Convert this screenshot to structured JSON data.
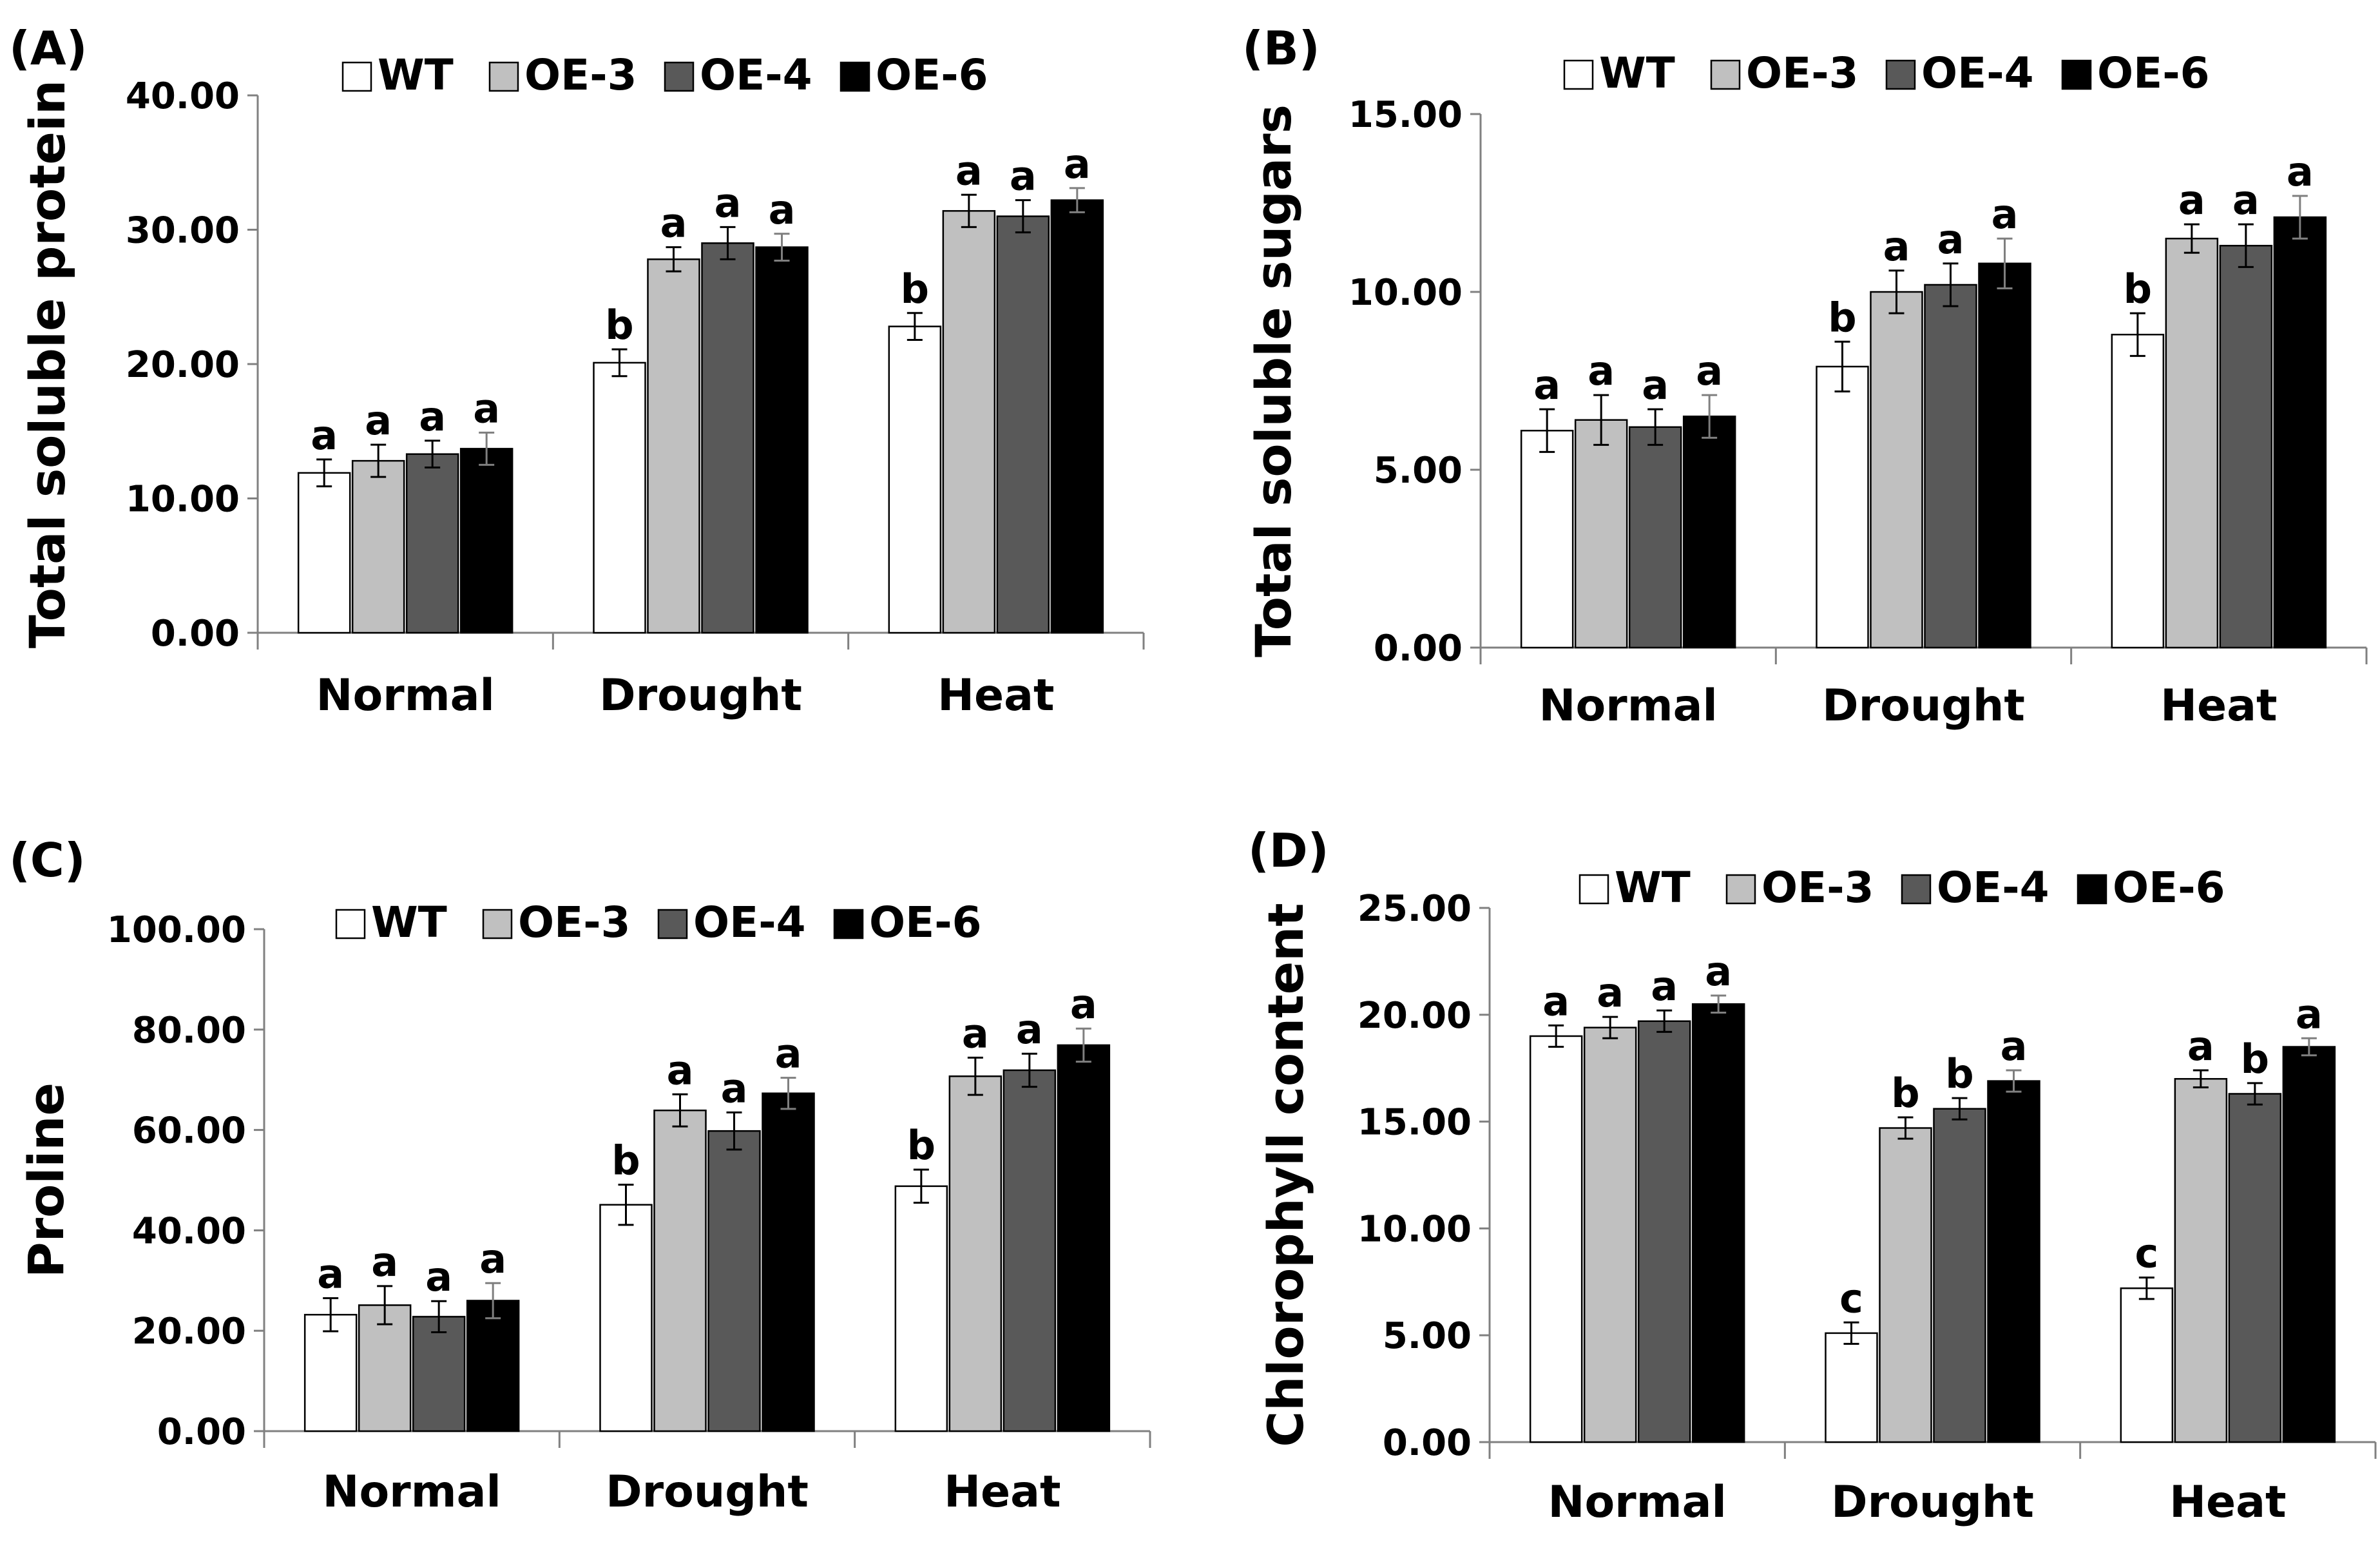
{
  "colors": {
    "WT": "#ffffff",
    "OE-3": "#c0c0c0",
    "OE-4": "#595959",
    "OE-6": "#000000",
    "axis": "#808080",
    "stroke": "#000000"
  },
  "chart_data": [
    {
      "type": "bar",
      "panel_label": "(A)",
      "ylabel": "Total soluble protein",
      "xlabel": "",
      "ylim": [
        0,
        40
      ],
      "yticks": [
        "0.00",
        "10.00",
        "20.00",
        "30.00",
        "40.00"
      ],
      "categories": [
        "Normal",
        "Drought",
        "Heat"
      ],
      "legend": [
        "WT",
        "OE-3",
        "OE-4",
        "OE-6"
      ],
      "series": [
        {
          "name": "WT",
          "values": [
            11.9,
            20.1,
            22.8
          ],
          "errors": [
            1.0,
            1.0,
            1.0
          ],
          "letters": [
            "a",
            "b",
            "b"
          ]
        },
        {
          "name": "OE-3",
          "values": [
            12.8,
            27.8,
            31.4
          ],
          "errors": [
            1.2,
            0.9,
            1.2
          ],
          "letters": [
            "a",
            "a",
            "a"
          ]
        },
        {
          "name": "OE-4",
          "values": [
            13.3,
            29.0,
            31.0
          ],
          "errors": [
            1.0,
            1.2,
            1.2
          ],
          "letters": [
            "a",
            "a",
            "a"
          ]
        },
        {
          "name": "OE-6",
          "values": [
            13.7,
            28.7,
            32.2
          ],
          "errors": [
            1.2,
            1.0,
            0.9
          ],
          "letters": [
            "a",
            "a",
            "a"
          ]
        }
      ]
    },
    {
      "type": "bar",
      "panel_label": "(B)",
      "ylabel": "Total soluble sugars",
      "xlabel": "",
      "ylim": [
        0,
        15
      ],
      "yticks": [
        "0.00",
        "5.00",
        "10.00",
        "15.00"
      ],
      "categories": [
        "Normal",
        "Drought",
        "Heat"
      ],
      "legend": [
        "WT",
        "OE-3",
        "OE-4",
        "OE-6"
      ],
      "series": [
        {
          "name": "WT",
          "values": [
            6.1,
            7.9,
            8.8
          ],
          "errors": [
            0.6,
            0.7,
            0.6
          ],
          "letters": [
            "a",
            "b",
            "b"
          ]
        },
        {
          "name": "OE-3",
          "values": [
            6.4,
            10.0,
            11.5
          ],
          "errors": [
            0.7,
            0.6,
            0.4
          ],
          "letters": [
            "a",
            "a",
            "a"
          ]
        },
        {
          "name": "OE-4",
          "values": [
            6.2,
            10.2,
            11.3
          ],
          "errors": [
            0.5,
            0.6,
            0.6
          ],
          "letters": [
            "a",
            "a",
            "a"
          ]
        },
        {
          "name": "OE-6",
          "values": [
            6.5,
            10.8,
            12.1
          ],
          "errors": [
            0.6,
            0.7,
            0.6
          ],
          "letters": [
            "a",
            "a",
            "a"
          ]
        }
      ]
    },
    {
      "type": "bar",
      "panel_label": "(C)",
      "ylabel": "Proline",
      "xlabel": "",
      "ylim": [
        0,
        100
      ],
      "yticks": [
        "0.00",
        "20.00",
        "40.00",
        "60.00",
        "80.00",
        "100.00"
      ],
      "categories": [
        "Normal",
        "Drought",
        "Heat"
      ],
      "legend": [
        "WT",
        "OE-3",
        "OE-4",
        "OE-6"
      ],
      "series": [
        {
          "name": "WT",
          "values": [
            23.2,
            45.1,
            48.8
          ],
          "errors": [
            3.3,
            4.0,
            3.3
          ],
          "letters": [
            "a",
            "b",
            "b"
          ]
        },
        {
          "name": "OE-3",
          "values": [
            25.1,
            63.9,
            70.7
          ],
          "errors": [
            3.8,
            3.2,
            3.7
          ],
          "letters": [
            "a",
            "a",
            "a"
          ]
        },
        {
          "name": "OE-4",
          "values": [
            22.8,
            59.8,
            71.9
          ],
          "errors": [
            3.1,
            3.7,
            3.3
          ],
          "letters": [
            "a",
            "a",
            "a"
          ]
        },
        {
          "name": "OE-6",
          "values": [
            26.0,
            67.3,
            76.9
          ],
          "errors": [
            3.5,
            3.1,
            3.3
          ],
          "letters": [
            "a",
            "a",
            "a"
          ]
        }
      ]
    },
    {
      "type": "bar",
      "panel_label": "(D)",
      "ylabel": "Chlorophyll content",
      "xlabel": "",
      "ylim": [
        0,
        25
      ],
      "yticks": [
        "0.00",
        "5.00",
        "10.00",
        "15.00",
        "20.00",
        "25.00"
      ],
      "categories": [
        "Normal",
        "Drought",
        "Heat"
      ],
      "legend": [
        "WT",
        "OE-3",
        "OE-4",
        "OE-6"
      ],
      "series": [
        {
          "name": "WT",
          "values": [
            19.0,
            5.1,
            7.2
          ],
          "errors": [
            0.5,
            0.5,
            0.5
          ],
          "letters": [
            "a",
            "c",
            "c"
          ]
        },
        {
          "name": "OE-3",
          "values": [
            19.4,
            14.7,
            17.0
          ],
          "errors": [
            0.5,
            0.5,
            0.4
          ],
          "letters": [
            "a",
            "b",
            "a"
          ]
        },
        {
          "name": "OE-4",
          "values": [
            19.7,
            15.6,
            16.3
          ],
          "errors": [
            0.5,
            0.5,
            0.5
          ],
          "letters": [
            "a",
            "b",
            "b"
          ]
        },
        {
          "name": "OE-6",
          "values": [
            20.5,
            16.9,
            18.5
          ],
          "errors": [
            0.4,
            0.5,
            0.4
          ],
          "letters": [
            "a",
            "a",
            "a"
          ]
        }
      ]
    }
  ]
}
